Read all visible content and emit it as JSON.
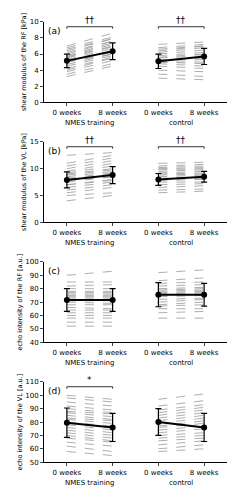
{
  "chart_data": [
    {
      "type": "line",
      "title": "(a)",
      "ylabel": "shear modulus of the RF [kPa]",
      "categories": [
        "0 weeks",
        "8 weeks",
        "0 weeks",
        "8 weeks"
      ],
      "ylim": [
        0,
        10
      ],
      "yticks": [
        0,
        2,
        4,
        6,
        8,
        10
      ],
      "grid": false,
      "groups": [
        {
          "label": "NMES training",
          "significance": "††",
          "individuals": {
            "color": "#999999",
            "line_style": "dashed",
            "pre": [
              3.2,
              3.5,
              3.8,
              4.0,
              4.2,
              4.5,
              4.7,
              5.0,
              5.0,
              5.2,
              5.3,
              5.5,
              5.6,
              5.7,
              5.8,
              6.0,
              6.2,
              6.4,
              6.6,
              6.8,
              7.0
            ],
            "post": [
              4.5,
              4.8,
              5.2,
              5.5,
              5.6,
              5.8,
              6.0,
              6.0,
              6.2,
              6.4,
              6.7,
              6.9,
              7.0,
              7.2,
              7.4,
              7.6,
              7.6,
              7.9,
              7.9,
              8.1,
              8.6
            ]
          },
          "mean": {
            "color": "#000000",
            "marker": "circle",
            "line_style": "solid",
            "values": [
              5.15,
              6.35
            ],
            "sd": [
              0.85,
              1.05
            ]
          }
        },
        {
          "label": "control",
          "significance": "††",
          "individuals": {
            "color": "#999999",
            "line_style": "dashed",
            "pre": [
              3.0,
              3.5,
              4.0,
              4.5,
              4.8,
              5.0,
              5.0,
              5.2,
              5.3,
              5.5,
              5.6,
              5.8,
              6.0,
              6.2,
              6.4,
              6.6,
              6.8,
              7.2
            ],
            "post": [
              2.8,
              3.2,
              3.8,
              4.2,
              4.5,
              4.8,
              5.0,
              5.3,
              5.5,
              5.8,
              6.0,
              6.2,
              6.5,
              6.8,
              7.0,
              7.0,
              7.2,
              7.5
            ]
          },
          "mean": {
            "color": "#000000",
            "marker": "circle",
            "line_style": "solid",
            "values": [
              5.1,
              5.7
            ],
            "sd": [
              0.9,
              1.0
            ]
          }
        }
      ]
    },
    {
      "type": "line",
      "title": "(b)",
      "ylabel": "shear modulus of the VL [kPa]",
      "categories": [
        "0 weeks",
        "8 weeks",
        "0 weeks",
        "8 weeks"
      ],
      "ylim": [
        0,
        15
      ],
      "yticks": [
        0,
        5,
        10,
        15
      ],
      "grid": false,
      "groups": [
        {
          "label": "NMES training",
          "significance": "††",
          "individuals": {
            "color": "#999999",
            "line_style": "dashed",
            "pre": [
              4.0,
              5.0,
              5.5,
              6.0,
              6.5,
              7.0,
              7.0,
              7.5,
              7.8,
              8.0,
              8.0,
              8.2,
              8.5,
              8.8,
              9.0,
              9.2,
              9.5,
              10.0,
              10.5,
              11.0,
              12.5
            ],
            "post": [
              5.0,
              5.5,
              6.5,
              7.0,
              7.5,
              7.8,
              8.0,
              8.5,
              8.5,
              8.8,
              9.0,
              9.2,
              9.5,
              9.8,
              10.0,
              10.5,
              11.0,
              11.5,
              12.0,
              12.5,
              13.0
            ]
          },
          "mean": {
            "color": "#000000",
            "marker": "circle",
            "line_style": "solid",
            "values": [
              7.9,
              8.8
            ],
            "sd": [
              1.5,
              1.6
            ]
          }
        },
        {
          "label": "control",
          "significance": "††",
          "individuals": {
            "color": "#999999",
            "line_style": "dashed",
            "pre": [
              5.5,
              6.0,
              6.5,
              7.0,
              7.5,
              7.8,
              8.0,
              8.2,
              8.5,
              8.8,
              9.0,
              9.2,
              9.5,
              9.8,
              10.0,
              10.2,
              10.5,
              11.0
            ],
            "post": [
              5.8,
              6.2,
              6.8,
              7.2,
              7.5,
              8.0,
              8.2,
              8.5,
              8.8,
              9.0,
              9.2,
              9.5,
              9.8,
              10.0,
              10.2,
              10.5,
              10.8,
              11.2
            ]
          },
          "mean": {
            "color": "#000000",
            "marker": "circle",
            "line_style": "solid",
            "values": [
              8.0,
              8.5
            ],
            "sd": [
              1.1,
              1.0
            ]
          }
        }
      ]
    },
    {
      "type": "line",
      "title": "(c)",
      "ylabel": "echo intensity of the RF [a.u.]",
      "categories": [
        "0 weeks",
        "8 weeks",
        "0 weeks",
        "8 weeks"
      ],
      "ylim": [
        40,
        100
      ],
      "yticks": [
        40,
        50,
        60,
        70,
        80,
        90,
        100
      ],
      "grid": false,
      "groups": [
        {
          "label": "NMES training",
          "individuals": {
            "color": "#999999",
            "line_style": "dashed",
            "pre": [
              52,
              55,
              58,
              60,
              62,
              64,
              66,
              68,
              70,
              71,
              72,
              73,
              74,
              75,
              76,
              77,
              78,
              80,
              82,
              85,
              90
            ],
            "post": [
              52,
              55,
              58,
              60,
              62,
              64,
              65,
              68,
              69,
              71,
              72,
              73,
              74,
              75,
              76,
              77,
              78,
              80,
              83,
              85,
              93
            ]
          },
          "mean": {
            "color": "#000000",
            "marker": "circle",
            "line_style": "solid",
            "values": [
              71.5,
              71.5
            ],
            "sd": [
              8.5,
              8.5
            ]
          }
        },
        {
          "label": "control",
          "individuals": {
            "color": "#999999",
            "line_style": "dashed",
            "pre": [
              58,
              62,
              65,
              67,
              68,
              70,
              72,
              74,
              75,
              76,
              77,
              78,
              79,
              80,
              82,
              84,
              86,
              92
            ],
            "post": [
              58,
              63,
              65,
              68,
              70,
              72,
              73,
              75,
              76,
              77,
              78,
              79,
              80,
              81,
              83,
              85,
              88,
              94
            ]
          },
          "mean": {
            "color": "#000000",
            "marker": "circle",
            "line_style": "solid",
            "values": [
              75.5,
              75.5
            ],
            "sd": [
              9.0,
              8.5
            ]
          }
        }
      ]
    },
    {
      "type": "line",
      "title": "(d)",
      "ylabel": "echo intensity of the VL [a.u.]",
      "categories": [
        "0 weeks",
        "8 weeks",
        "0 weeks",
        "8 weeks"
      ],
      "ylim": [
        50,
        110
      ],
      "yticks": [
        50,
        60,
        70,
        80,
        90,
        100,
        110
      ],
      "grid": false,
      "groups": [
        {
          "label": "NMES training",
          "significance": "*",
          "individuals": {
            "color": "#999999",
            "line_style": "dashed",
            "pre": [
              58,
              62,
              65,
              68,
              70,
              72,
              74,
              76,
              78,
              79,
              80,
              82,
              83,
              85,
              87,
              88,
              90,
              92,
              95,
              98,
              100
            ],
            "post": [
              55,
              58,
              62,
              65,
              66,
              68,
              70,
              72,
              74,
              76,
              77,
              79,
              81,
              82,
              84,
              86,
              87,
              89,
              92,
              95,
              97
            ]
          },
          "mean": {
            "color": "#000000",
            "marker": "circle",
            "line_style": "solid",
            "values": [
              79.5,
              76.0
            ],
            "sd": [
              11.0,
              10.5
            ]
          }
        },
        {
          "label": "control",
          "individuals": {
            "color": "#999999",
            "line_style": "dashed",
            "pre": [
              58,
              60,
              63,
              66,
              68,
              70,
              72,
              74,
              76,
              77,
              79,
              81,
              83,
              85,
              87,
              89,
              92,
              97
            ],
            "post": [
              60,
              63,
              66,
              68,
              70,
              72,
              75,
              77,
              79,
              81,
              83,
              85,
              87,
              89,
              91,
              93,
              96,
              101
            ]
          },
          "mean": {
            "color": "#000000",
            "marker": "circle",
            "line_style": "solid",
            "values": [
              80.0,
              76.0
            ],
            "sd": [
              10.0,
              10.5
            ]
          }
        }
      ]
    }
  ]
}
